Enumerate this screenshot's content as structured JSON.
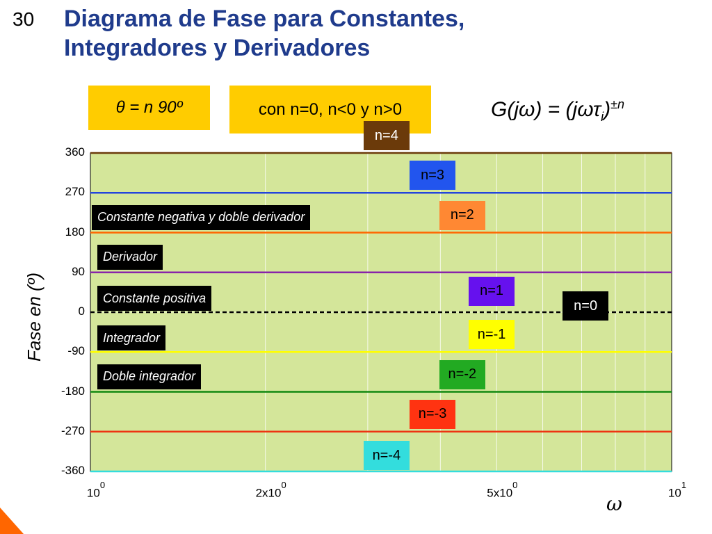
{
  "slide": {
    "number": "30",
    "title_line1": "Diagrama de Fase para Constantes,",
    "title_line2": "Integradores y Derivadores",
    "box_theta": "θ = n 90º",
    "box_conditions": "con n=0, n<0 y n>0",
    "formula_left": "G(jω) = ",
    "formula_base": "(jωτ",
    "formula_sub": "i",
    "formula_close": ")",
    "formula_exp": "±n"
  },
  "chart_data": {
    "type": "line",
    "ylabel": "Fase en (º)",
    "xlabel": "ω",
    "x_scale": "log",
    "xlim": [
      1,
      10
    ],
    "ylim": [
      -360,
      360
    ],
    "yticks": [
      360,
      270,
      180,
      90,
      0,
      -90,
      -180,
      -270,
      -360
    ],
    "ytick_labels": [
      "360",
      "270",
      "180",
      "90",
      "0",
      "-90",
      "-180",
      "-270",
      "-360"
    ],
    "xticks": [
      {
        "value": 1,
        "base": "10",
        "exp": "0"
      },
      {
        "value": 2,
        "base": "2x10",
        "exp": "0"
      },
      {
        "value": 5,
        "base": "5x10",
        "exp": "0"
      },
      {
        "value": 10,
        "base": "10",
        "exp": "1"
      }
    ],
    "series": [
      {
        "name": "n=4",
        "y": 360,
        "color": "#6b3a0a",
        "label_bg": "#6b3a0a",
        "label_fg": "#ffffff",
        "label_x": 3.0
      },
      {
        "name": "n=3",
        "y": 270,
        "color": "#2244dd",
        "label_bg": "#2255ee",
        "label_fg": "#000000",
        "label_x": 3.6
      },
      {
        "name": "n=2",
        "y": 180,
        "color": "#ff6600",
        "label_bg": "#ff8833",
        "label_fg": "#000000",
        "label_x": 4.05
      },
      {
        "name": "n=1",
        "y": 90,
        "color": "#8822aa",
        "label_bg": "#6611ee",
        "label_fg": "#000000",
        "label_x": 4.55
      },
      {
        "name": "n=0",
        "y": 0,
        "color": "#000000",
        "label_bg": "#000000",
        "label_fg": "#ffffff",
        "label_x": 6.6,
        "dashed": true
      },
      {
        "name": "n=-1",
        "y": -90,
        "color": "#ffff00",
        "label_bg": "#ffff00",
        "label_fg": "#000000",
        "label_x": 4.55
      },
      {
        "name": "n=-2",
        "y": -180,
        "color": "#118811",
        "label_bg": "#22aa22",
        "label_fg": "#000000",
        "label_x": 4.05
      },
      {
        "name": "n=-3",
        "y": -270,
        "color": "#ee3311",
        "label_bg": "#ff3311",
        "label_fg": "#000000",
        "label_x": 3.6
      },
      {
        "name": "n=-4",
        "y": -360,
        "color": "#33dddd",
        "label_bg": "#33dddd",
        "label_fg": "#000000",
        "label_x": 3.0
      }
    ],
    "annotations": [
      {
        "text": "Constante negativa y doble derivador",
        "y": 180
      },
      {
        "text": "Derivador",
        "y": 90
      },
      {
        "text": "Constante positiva",
        "y": 0
      },
      {
        "text": "Integrador",
        "y": -90
      },
      {
        "text": "Doble integrador",
        "y": -180
      }
    ],
    "background": "#d4e69a",
    "grid": true
  }
}
